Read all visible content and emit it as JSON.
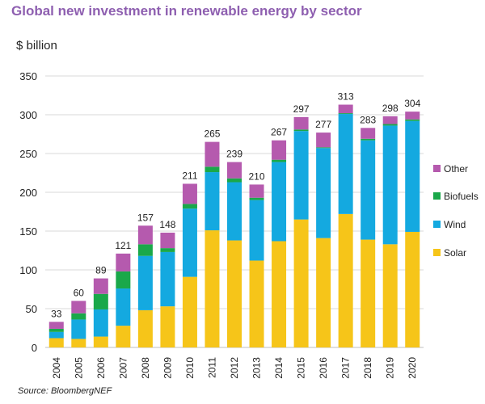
{
  "chart_data": {
    "type": "bar",
    "stacked": true,
    "title": "Global new investment in renewable energy by sector",
    "ylabel": "$ billion",
    "source": "Source: BloombergNEF",
    "categories": [
      "2004",
      "2005",
      "2006",
      "2007",
      "2008",
      "2009",
      "2010",
      "2011",
      "2012",
      "2013",
      "2014",
      "2015",
      "2016",
      "2017",
      "2018",
      "2019",
      "2020"
    ],
    "ylim": [
      0,
      350
    ],
    "yticks": [
      0,
      50,
      100,
      150,
      200,
      250,
      300,
      350
    ],
    "grid": true,
    "legend_position": "right",
    "series": [
      {
        "name": "Solar",
        "color": "#f6c519",
        "values": [
          12,
          11,
          14,
          28,
          48,
          53,
          91,
          151,
          138,
          112,
          137,
          165,
          141,
          172,
          139,
          133,
          149
        ]
      },
      {
        "name": "Wind",
        "color": "#14a9e0",
        "values": [
          8,
          25,
          35,
          48,
          70,
          70,
          88,
          75,
          75,
          78,
          102,
          114,
          116,
          129,
          128,
          153,
          143
        ]
      },
      {
        "name": "Biofuels",
        "color": "#1aa84a",
        "values": [
          4,
          8,
          20,
          22,
          15,
          5,
          6,
          7,
          5,
          3,
          3,
          2,
          1,
          1,
          2,
          2,
          2
        ]
      },
      {
        "name": "Other",
        "color": "#b55aae",
        "values": [
          9,
          16,
          20,
          23,
          24,
          20,
          26,
          32,
          21,
          17,
          25,
          16,
          19,
          11,
          14,
          10,
          10
        ]
      }
    ],
    "totals": [
      33,
      60,
      89,
      121,
      157,
      148,
      211,
      265,
      239,
      210,
      267,
      297,
      277,
      313,
      283,
      298,
      304
    ],
    "legend_order": [
      "Other",
      "Biofuels",
      "Wind",
      "Solar"
    ]
  }
}
